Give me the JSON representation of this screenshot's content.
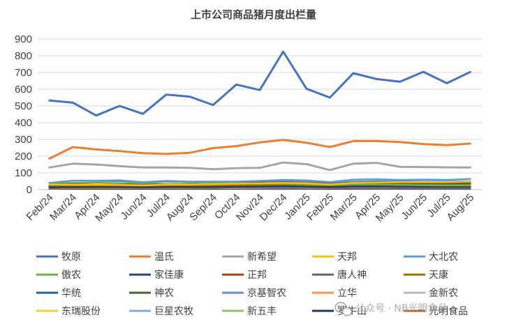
{
  "chart_data": {
    "type": "line",
    "title": "上市公司商品猪月度出栏量",
    "xlabel": "",
    "ylabel": "",
    "ylim": [
      0,
      900
    ],
    "yticks": [
      0,
      100,
      200,
      300,
      400,
      500,
      600,
      700,
      800,
      900
    ],
    "grid": true,
    "legend_position": "bottom",
    "categories": [
      "Feb/24",
      "Mar/24",
      "Apr/24",
      "May/24",
      "Jun/24",
      "Jul/24",
      "Aug/24",
      "Sep/24",
      "Oct/24",
      "Nov/24",
      "Dec/24",
      "Jan/25",
      "Feb/25",
      "Mar/25",
      "Apr/25",
      "May/25",
      "Jun/25",
      "Jul/25",
      "Aug/25"
    ],
    "series": [
      {
        "name": "牧原",
        "color": "#4472C4",
        "values": [
          533,
          520,
          443,
          500,
          453,
          568,
          556,
          506,
          628,
          595,
          825,
          603,
          550,
          696,
          661,
          645,
          704,
          636,
          703
        ]
      },
      {
        "name": "温氏",
        "color": "#ED7D31",
        "values": [
          185,
          254,
          240,
          230,
          218,
          213,
          220,
          248,
          260,
          282,
          297,
          280,
          254,
          290,
          290,
          284,
          272,
          266,
          275
        ]
      },
      {
        "name": "新希望",
        "color": "#A5A5A5",
        "values": [
          132,
          155,
          150,
          140,
          132,
          132,
          130,
          122,
          128,
          130,
          162,
          152,
          117,
          155,
          160,
          136,
          135,
          133,
          132
        ]
      },
      {
        "name": "天邦",
        "color": "#FFC000",
        "values": [
          30,
          28,
          30,
          28,
          25,
          30,
          30,
          33,
          35,
          37,
          40,
          38,
          30,
          40,
          42,
          44,
          45,
          45,
          48
        ]
      },
      {
        "name": "大北农",
        "color": "#5B9BD5",
        "values": [
          40,
          53,
          53,
          56,
          44,
          52,
          48,
          48,
          48,
          52,
          58,
          55,
          45,
          60,
          62,
          58,
          60,
          58,
          64
        ]
      },
      {
        "name": "傲农",
        "color": "#70AD47",
        "values": [
          38,
          40,
          42,
          46,
          38,
          47,
          45,
          40,
          38,
          35,
          36,
          30,
          28,
          30,
          30,
          28,
          26,
          25,
          25
        ]
      },
      {
        "name": "家佳康",
        "color": "#264478",
        "values": [
          14,
          16,
          15,
          15,
          14,
          15,
          15,
          16,
          17,
          18,
          20,
          18,
          15,
          20,
          20,
          19,
          18,
          18,
          18
        ]
      },
      {
        "name": "正邦",
        "color": "#9E480E",
        "values": [
          10,
          12,
          12,
          12,
          11,
          12,
          12,
          12,
          14,
          15,
          16,
          15,
          12,
          15,
          15,
          14,
          14,
          14,
          14
        ]
      },
      {
        "name": "唐人神",
        "color": "#636363",
        "values": [
          30,
          32,
          30,
          32,
          30,
          32,
          32,
          35,
          40,
          42,
          45,
          42,
          35,
          42,
          44,
          44,
          43,
          42,
          42
        ]
      },
      {
        "name": "天康",
        "color": "#997300",
        "values": [
          18,
          20,
          22,
          22,
          20,
          22,
          22,
          24,
          26,
          27,
          30,
          28,
          25,
          28,
          30,
          30,
          28,
          28,
          28
        ]
      },
      {
        "name": "华统",
        "color": "#255E91",
        "values": [
          22,
          25,
          24,
          25,
          24,
          25,
          26,
          28,
          30,
          32,
          35,
          33,
          28,
          34,
          35,
          35,
          34,
          34,
          36
        ]
      },
      {
        "name": "神农",
        "color": "#43682B",
        "values": [
          20,
          20,
          20,
          22,
          20,
          22,
          22,
          24,
          26,
          26,
          28,
          26,
          24,
          27,
          28,
          28,
          28,
          28,
          28
        ]
      },
      {
        "name": "京基智农",
        "color": "#698ED0",
        "values": [
          25,
          28,
          30,
          32,
          30,
          32,
          34,
          36,
          40,
          45,
          50,
          45,
          38,
          48,
          50,
          50,
          48,
          48,
          50
        ]
      },
      {
        "name": "立华",
        "color": "#F1975A",
        "values": [
          10,
          12,
          12,
          12,
          12,
          12,
          12,
          13,
          14,
          15,
          16,
          15,
          13,
          16,
          16,
          16,
          16,
          16,
          16
        ]
      },
      {
        "name": "金新农",
        "color": "#B7B7B7",
        "values": [
          12,
          12,
          12,
          12,
          12,
          12,
          12,
          12,
          12,
          12,
          12,
          12,
          12,
          12,
          12,
          12,
          12,
          12,
          12
        ]
      },
      {
        "name": "东瑞股份",
        "color": "#FFCD33",
        "values": [
          8,
          9,
          9,
          9,
          9,
          9,
          9,
          10,
          10,
          11,
          12,
          11,
          10,
          12,
          12,
          12,
          12,
          12,
          12
        ]
      },
      {
        "name": "巨星农牧",
        "color": "#7CAFDD",
        "values": [
          20,
          22,
          22,
          24,
          22,
          24,
          26,
          28,
          30,
          32,
          35,
          32,
          28,
          34,
          36,
          36,
          36,
          36,
          38
        ]
      },
      {
        "name": "新五丰",
        "color": "#8CC168",
        "values": [
          25,
          28,
          26,
          28,
          26,
          28,
          30,
          32,
          34,
          36,
          38,
          36,
          30,
          36,
          38,
          38,
          38,
          38,
          40
        ]
      },
      {
        "name": "罗牛山",
        "color": "#203864",
        "values": [
          5,
          5,
          5,
          5,
          5,
          5,
          5,
          5,
          6,
          6,
          6,
          6,
          5,
          6,
          6,
          6,
          6,
          6,
          6
        ]
      },
      {
        "name": "光明食品",
        "color": "#C55A11",
        "values": [
          6,
          6,
          6,
          6,
          6,
          6,
          6,
          7,
          7,
          7,
          8,
          7,
          6,
          7,
          7,
          7,
          7,
          7,
          7
        ]
      }
    ]
  },
  "watermark": {
    "text": "公众号 · NB光明食品",
    "icon": "wechat-icon"
  }
}
